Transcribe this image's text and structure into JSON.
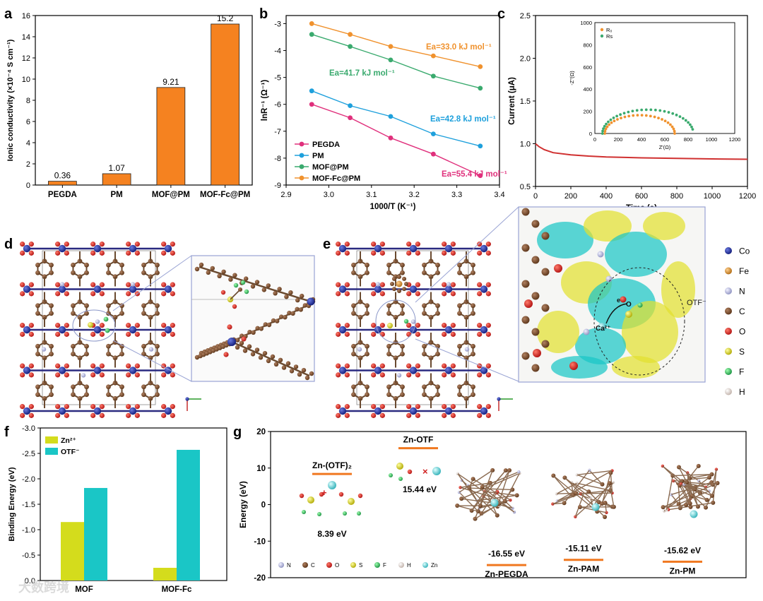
{
  "chart_data": [
    {
      "panel": "a",
      "type": "bar",
      "categories": [
        "PEGDA",
        "PM",
        "MOF@PM",
        "MOF-Fc@PM"
      ],
      "values": [
        0.36,
        1.07,
        9.21,
        15.2
      ],
      "value_labels": [
        "0.36",
        "1.07",
        "9.21",
        "15.2"
      ],
      "ylabel": "Ionic conductivity (×10⁻⁴ S cm⁻¹)",
      "ylim": [
        0,
        16
      ],
      "yticks": [
        "0",
        "2",
        "4",
        "6",
        "8",
        "10",
        "12",
        "14",
        "16"
      ],
      "bar_color": "#f58220"
    },
    {
      "panel": "b",
      "type": "line",
      "xlabel": "1000/T (K⁻¹)",
      "ylabel": "lnR⁻¹ (Ω⁻¹)",
      "xlim": [
        2.9,
        3.4
      ],
      "ylim": [
        -9,
        -2.7
      ],
      "xticks": [
        "2.9",
        "3.0",
        "3.1",
        "3.2",
        "3.3",
        "3.4"
      ],
      "yticks": [
        "-3",
        "-4",
        "-5",
        "-6",
        "-7",
        "-8",
        "-9"
      ],
      "x": [
        2.96,
        3.05,
        3.145,
        3.245,
        3.355
      ],
      "series": [
        {
          "name": "PEGDA",
          "color": "#e0307c",
          "values": [
            -6.0,
            -6.5,
            -7.25,
            -7.85,
            -8.65
          ],
          "annotation": "Ea=55.4 kJ mol⁻¹"
        },
        {
          "name": "PM",
          "color": "#1ea0dc",
          "values": [
            -5.5,
            -6.05,
            -6.45,
            -7.1,
            -7.55
          ],
          "annotation": "Ea=42.8 kJ mol⁻¹"
        },
        {
          "name": "MOF@PM",
          "color": "#3aaa6e",
          "values": [
            -3.4,
            -3.85,
            -4.35,
            -4.95,
            -5.4
          ],
          "annotation": "Ea=41.7 kJ mol⁻¹"
        },
        {
          "name": "MOF-Fc@PM",
          "color": "#f0922e",
          "values": [
            -3.0,
            -3.4,
            -3.85,
            -4.2,
            -4.6
          ],
          "annotation": "Ea=33.0 kJ mol⁻¹"
        }
      ]
    },
    {
      "panel": "c",
      "type": "line",
      "xlabel": "Time (s)",
      "ylabel": "Current (μA)",
      "xlim": [
        0,
        1200
      ],
      "ylim": [
        0.5,
        2.5
      ],
      "xticks": [
        "0",
        "200",
        "400",
        "600",
        "800",
        "1000",
        "1200"
      ],
      "yticks": [
        "0.5",
        "1.0",
        "1.5",
        "2.0",
        "2.5"
      ],
      "series": [
        {
          "name": "current",
          "color": "#d03030",
          "x": [
            0,
            20,
            50,
            100,
            200,
            300,
            400,
            600,
            800,
            1000,
            1200
          ],
          "values": [
            1.0,
            0.965,
            0.93,
            0.895,
            0.87,
            0.855,
            0.845,
            0.835,
            0.828,
            0.822,
            0.818
          ]
        }
      ],
      "inset": {
        "type": "scatter",
        "xlabel": "Z'(Ω)",
        "ylabel": "-Z''(Ω)",
        "xlim": [
          0,
          1200
        ],
        "ylim": [
          0,
          1000
        ],
        "xticks": [
          "0",
          "200",
          "400",
          "600",
          "800",
          "1000",
          "1200"
        ],
        "yticks": [
          "0",
          "200",
          "400",
          "600",
          "800",
          "1000"
        ],
        "series": [
          {
            "name": "R₀",
            "color": "#f0922e",
            "center": 385,
            "radius": 300,
            "count": 26
          },
          {
            "name": "Rs",
            "color": "#3aaa6e",
            "center": 455,
            "radius": 390,
            "count": 30,
            "end_deg": 170
          }
        ]
      }
    },
    {
      "panel": "f",
      "type": "bar",
      "categories": [
        "MOF",
        "MOF-Fc"
      ],
      "series": [
        {
          "name": "Zn²⁺",
          "color": "#d4dc1c",
          "values": [
            -1.15,
            -0.25
          ]
        },
        {
          "name": "OTF⁻",
          "color": "#1ac6c6",
          "values": [
            -1.82,
            -2.57
          ]
        }
      ],
      "ylabel": "Binding Energy (eV)",
      "ylim": [
        0,
        -3.0
      ],
      "yticks": [
        "0.0",
        "-0.5",
        "-1.0",
        "-1.5",
        "-2.0",
        "-2.5",
        "-3.0"
      ]
    },
    {
      "panel": "g",
      "type": "scatter",
      "ylabel": "Energy (eV)",
      "ylim": [
        -20,
        20
      ],
      "yticks": [
        "20",
        "10",
        "0",
        "-10",
        "-20"
      ],
      "levels": [
        {
          "name": "Zn-(OTF)₂",
          "value": 8.39,
          "label": "8.39 eV"
        },
        {
          "name": "Zn-OTF",
          "value": 15.44,
          "label": "15.44 eV"
        },
        {
          "name": "Zn-PEGDA",
          "value": -16.55,
          "label": "-16.55 eV"
        },
        {
          "name": "Zn-PAM",
          "value": -15.11,
          "label": "-15.11 eV"
        },
        {
          "name": "Zn-PM",
          "value": -15.62,
          "label": "-15.62 eV"
        }
      ]
    }
  ],
  "panels": {
    "a": "a",
    "b": "b",
    "c": "c",
    "d": "d",
    "e": "e",
    "f": "f",
    "g": "g"
  },
  "panel_c_inset_legend": [
    "R₀",
    "Rs"
  ],
  "panel_e": {
    "element_legend": [
      {
        "symbol": "Co",
        "color": "#1c2a9c"
      },
      {
        "symbol": "Fe",
        "color": "#d89030"
      },
      {
        "symbol": "N",
        "color": "#b4b8dc"
      },
      {
        "symbol": "C",
        "color": "#7a4a2a"
      },
      {
        "symbol": "O",
        "color": "#d02020"
      },
      {
        "symbol": "S",
        "color": "#e8e040"
      },
      {
        "symbol": "F",
        "color": "#40d070"
      },
      {
        "symbol": "H",
        "color": "#e8dcd4"
      }
    ],
    "labels": {
      "otf": "OTF⁻",
      "ca": "Ca²⁺",
      "o": "O",
      "e": "e"
    }
  },
  "panel_g_legend": [
    {
      "symbol": "N",
      "color": "#b4b8dc"
    },
    {
      "symbol": "C",
      "color": "#7a4a2a"
    },
    {
      "symbol": "O",
      "color": "#d02020"
    },
    {
      "symbol": "S",
      "color": "#e8e040"
    },
    {
      "symbol": "F",
      "color": "#40d070"
    },
    {
      "symbol": "H",
      "color": "#e8dcd4"
    },
    {
      "symbol": "Zn",
      "color": "#7ed8dc"
    }
  ],
  "watermark": "大数跨境"
}
